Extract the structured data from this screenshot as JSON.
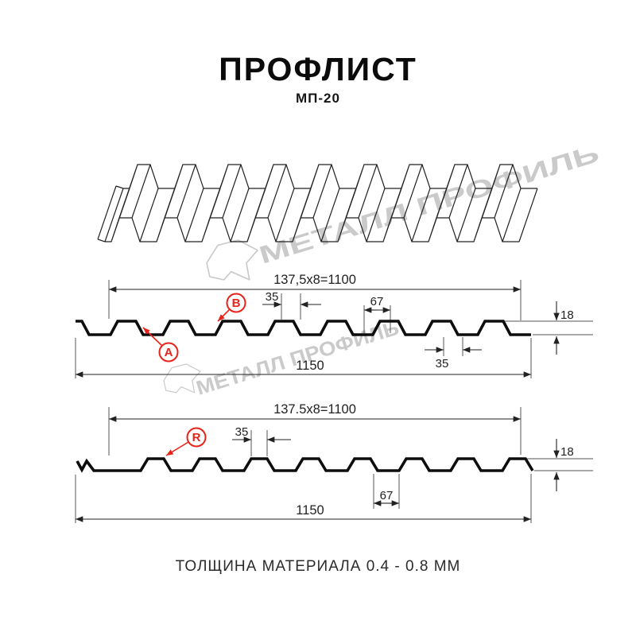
{
  "page": {
    "title": "ПРОФЛИСТ",
    "subtitle": "МП-20",
    "footer": "ТОЛЩИНА МАТЕРИАЛА 0.4 - 0.8 ММ"
  },
  "watermark": {
    "brand_text": "МЕТАЛЛ ПРОФИЛЬ"
  },
  "colors": {
    "accent_red": "#e8231a",
    "line_black": "#222222",
    "watermark_gray": "#cacaca"
  },
  "sections": {
    "front": {
      "dim_pitch_total": "137,5x8=1100",
      "dim_rib_top": "35",
      "dim_valley": "67",
      "dim_height": "18",
      "dim_rib_bottom": "35",
      "dim_overall": "1150",
      "callout_a": "A",
      "callout_b": "B"
    },
    "back": {
      "dim_pitch_total": "137.5x8=1100",
      "dim_rib_top": "35",
      "dim_valley": "67",
      "dim_height": "18",
      "dim_overall": "1150",
      "callout_r": "R"
    }
  }
}
